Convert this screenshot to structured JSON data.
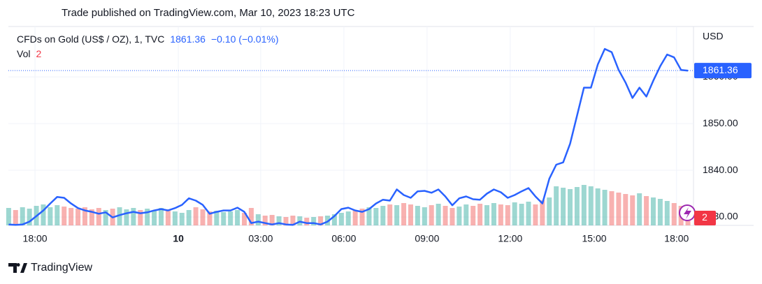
{
  "chart_data": {
    "type": "line",
    "title": "Trade published on TradingView.com, Mar 10, 2023 18:23 UTC",
    "y_axis_label": "USD",
    "change_label": "−0.10 (−0.01%)",
    "branding": "TradingView",
    "last_price": 1861.36,
    "x": [
      -0.95,
      -0.7,
      -0.45,
      -0.2,
      0.05,
      0.3,
      0.55,
      0.8,
      1.05,
      1.3,
      1.55,
      1.8,
      2.05,
      2.3,
      2.55,
      2.8,
      3.05,
      3.3,
      3.55,
      3.8,
      4.05,
      4.3,
      4.55,
      4.8,
      5.05,
      5.3,
      5.55,
      5.8,
      6.05,
      6.3,
      6.55,
      6.8,
      7.05,
      7.3,
      7.55,
      7.8,
      8.05,
      8.3,
      8.55,
      8.8,
      9.05,
      9.3,
      9.55,
      9.8,
      10.05,
      10.3,
      10.55,
      10.8,
      11.05,
      11.3,
      11.55,
      11.8,
      12.05,
      12.3,
      12.55,
      12.8,
      13.05,
      13.3,
      13.55,
      13.8,
      14.05,
      14.3,
      14.55,
      14.8,
      15.05,
      15.3,
      15.55,
      15.8,
      16.05,
      16.3,
      16.55,
      16.8,
      17.05,
      17.3,
      17.55,
      17.8,
      18.05,
      18.3,
      18.55,
      18.8,
      19.05,
      19.3,
      19.55,
      19.8,
      20.05,
      20.3,
      20.55,
      20.8,
      21.05,
      21.3,
      21.55,
      21.8,
      22.05,
      22.3,
      22.55,
      22.8,
      23.05,
      23.3,
      23.55
    ],
    "series": [
      {
        "name": "CFDs on Gold (US$ / OZ), 1, TVC",
        "color": "#2962ff",
        "values": [
          1828.4,
          1828.3,
          1828.4,
          1829.0,
          1830.2,
          1831.4,
          1832.9,
          1834.3,
          1834.1,
          1832.9,
          1831.9,
          1831.4,
          1831.1,
          1830.7,
          1831.0,
          1829.9,
          1830.4,
          1830.8,
          1831.1,
          1830.8,
          1831.0,
          1831.4,
          1831.7,
          1831.4,
          1831.9,
          1832.6,
          1834.0,
          1833.5,
          1832.6,
          1830.7,
          1831.1,
          1831.4,
          1831.4,
          1832.0,
          1831.1,
          1828.7,
          1829.0,
          1828.7,
          1828.4,
          1828.7,
          1828.4,
          1828.3,
          1829.0,
          1828.7,
          1828.7,
          1828.4,
          1829.0,
          1830.2,
          1831.7,
          1832.0,
          1831.4,
          1831.1,
          1831.7,
          1832.9,
          1833.7,
          1833.5,
          1835.9,
          1834.7,
          1834.1,
          1835.5,
          1835.6,
          1835.2,
          1835.9,
          1834.4,
          1832.5,
          1834.0,
          1834.4,
          1833.8,
          1833.7,
          1835.0,
          1835.9,
          1835.3,
          1834.1,
          1834.7,
          1835.5,
          1836.2,
          1834.4,
          1832.9,
          1838.2,
          1841.2,
          1841.7,
          1845.7,
          1851.7,
          1857.7,
          1857.7,
          1862.7,
          1866.0,
          1865.3,
          1861.5,
          1858.8,
          1855.5,
          1857.7,
          1855.8,
          1859.2,
          1862.3,
          1864.8,
          1864.2,
          1861.5,
          1861.36
        ]
      }
    ],
    "volume": {
      "name": "Vol",
      "up_color": "#26a69a",
      "down_color": "#ef5350",
      "vlim": [
        0,
        8
      ],
      "values": [
        2.5,
        2.2,
        2.6,
        2.4,
        2.8,
        3,
        2.6,
        2.9,
        2.7,
        2.5,
        2.4,
        2.6,
        2.3,
        2.5,
        2.2,
        2.4,
        2.6,
        2.3,
        2.5,
        2.2,
        2.4,
        2.1,
        2.5,
        2.3,
        2,
        1.8,
        2.2,
        2.6,
        2.3,
        2,
        2.1,
        1.9,
        2,
        2.2,
        1.8,
        2.5,
        1.6,
        1.4,
        1.5,
        1.3,
        1.2,
        1.4,
        1.3,
        1.1,
        1.2,
        1.3,
        1.4,
        1.6,
        1.8,
        2,
        2.2,
        2.4,
        2.6,
        2.5,
        2.8,
        3,
        2.9,
        3.2,
        3,
        2.8,
        2.6,
        2.9,
        3.1,
        2.8,
        2.5,
        2.7,
        3,
        2.8,
        3.1,
        2.9,
        3.2,
        3,
        2.9,
        3.3,
        3.1,
        3.4,
        3,
        3.6,
        4,
        5.6,
        5.4,
        5.2,
        5.5,
        5.8,
        5.6,
        5.3,
        5.1,
        4.9,
        4.7,
        4.5,
        4.3,
        4.6,
        4.2,
        4,
        3.8,
        3.5,
        3.2,
        2.8,
        2
      ]
    },
    "xlim": [
      -0.96,
      23.75
    ],
    "xticks": [
      {
        "value": 0,
        "label": "18:00"
      },
      {
        "value": 5.17,
        "label": "10"
      },
      {
        "value": 8.14,
        "label": "03:00"
      },
      {
        "value": 11.14,
        "label": "06:00"
      },
      {
        "value": 14.14,
        "label": "09:00"
      },
      {
        "value": 17.14,
        "label": "12:00"
      },
      {
        "value": 20.17,
        "label": "15:00"
      },
      {
        "value": 23.14,
        "label": "18:00"
      }
    ],
    "ylim": [
      1828.2,
      1870.8
    ],
    "yticks": [
      {
        "value": 1830,
        "label": "1830.00"
      },
      {
        "value": 1840,
        "label": "1840.00"
      },
      {
        "value": 1850,
        "label": "1850.00"
      },
      {
        "value": 1860,
        "label": "1860.00"
      }
    ],
    "grid": true
  }
}
